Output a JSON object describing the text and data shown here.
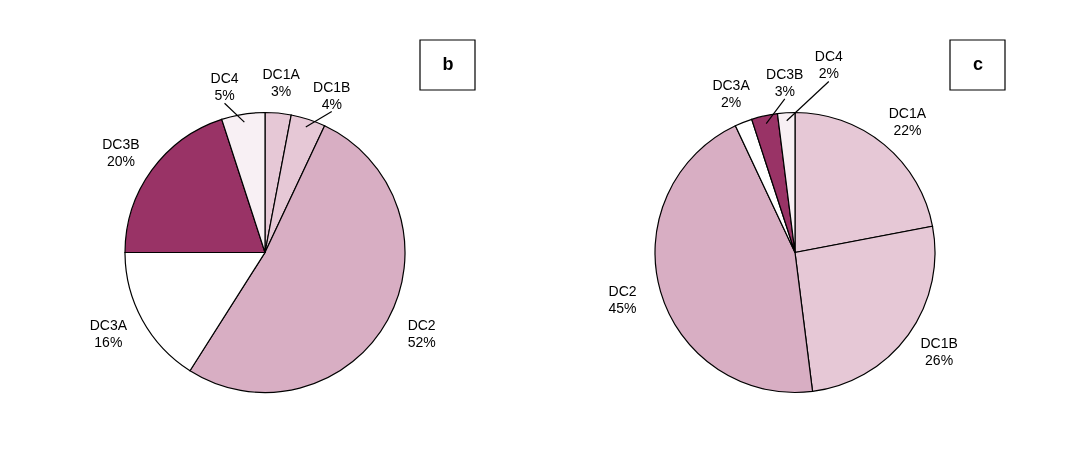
{
  "chart_data": [
    {
      "type": "pie",
      "title": "b",
      "categories": [
        "DC1A",
        "DC1B",
        "DC2",
        "DC3A",
        "DC3B",
        "DC4"
      ],
      "values": [
        3,
        4,
        52,
        16,
        20,
        5
      ],
      "value_labels": [
        "3%",
        "4%",
        "52%",
        "16%",
        "20%",
        "5%"
      ],
      "colors": [
        "#e6c8d6",
        "#e6c8d6",
        "#d8aec3",
        "#ffffff",
        "#993366",
        "#f8f0f4"
      ]
    },
    {
      "type": "pie",
      "title": "c",
      "categories": [
        "DC1A",
        "DC1B",
        "DC2",
        "DC3A",
        "DC3B",
        "DC4"
      ],
      "values": [
        22,
        26,
        45,
        2,
        3,
        2
      ],
      "value_labels": [
        "22%",
        "26%",
        "45%",
        "2%",
        "3%",
        "2%"
      ],
      "colors": [
        "#e6c8d6",
        "#e6c8d6",
        "#d8aec3",
        "#ffffff",
        "#993366",
        "#ffffff"
      ]
    }
  ]
}
